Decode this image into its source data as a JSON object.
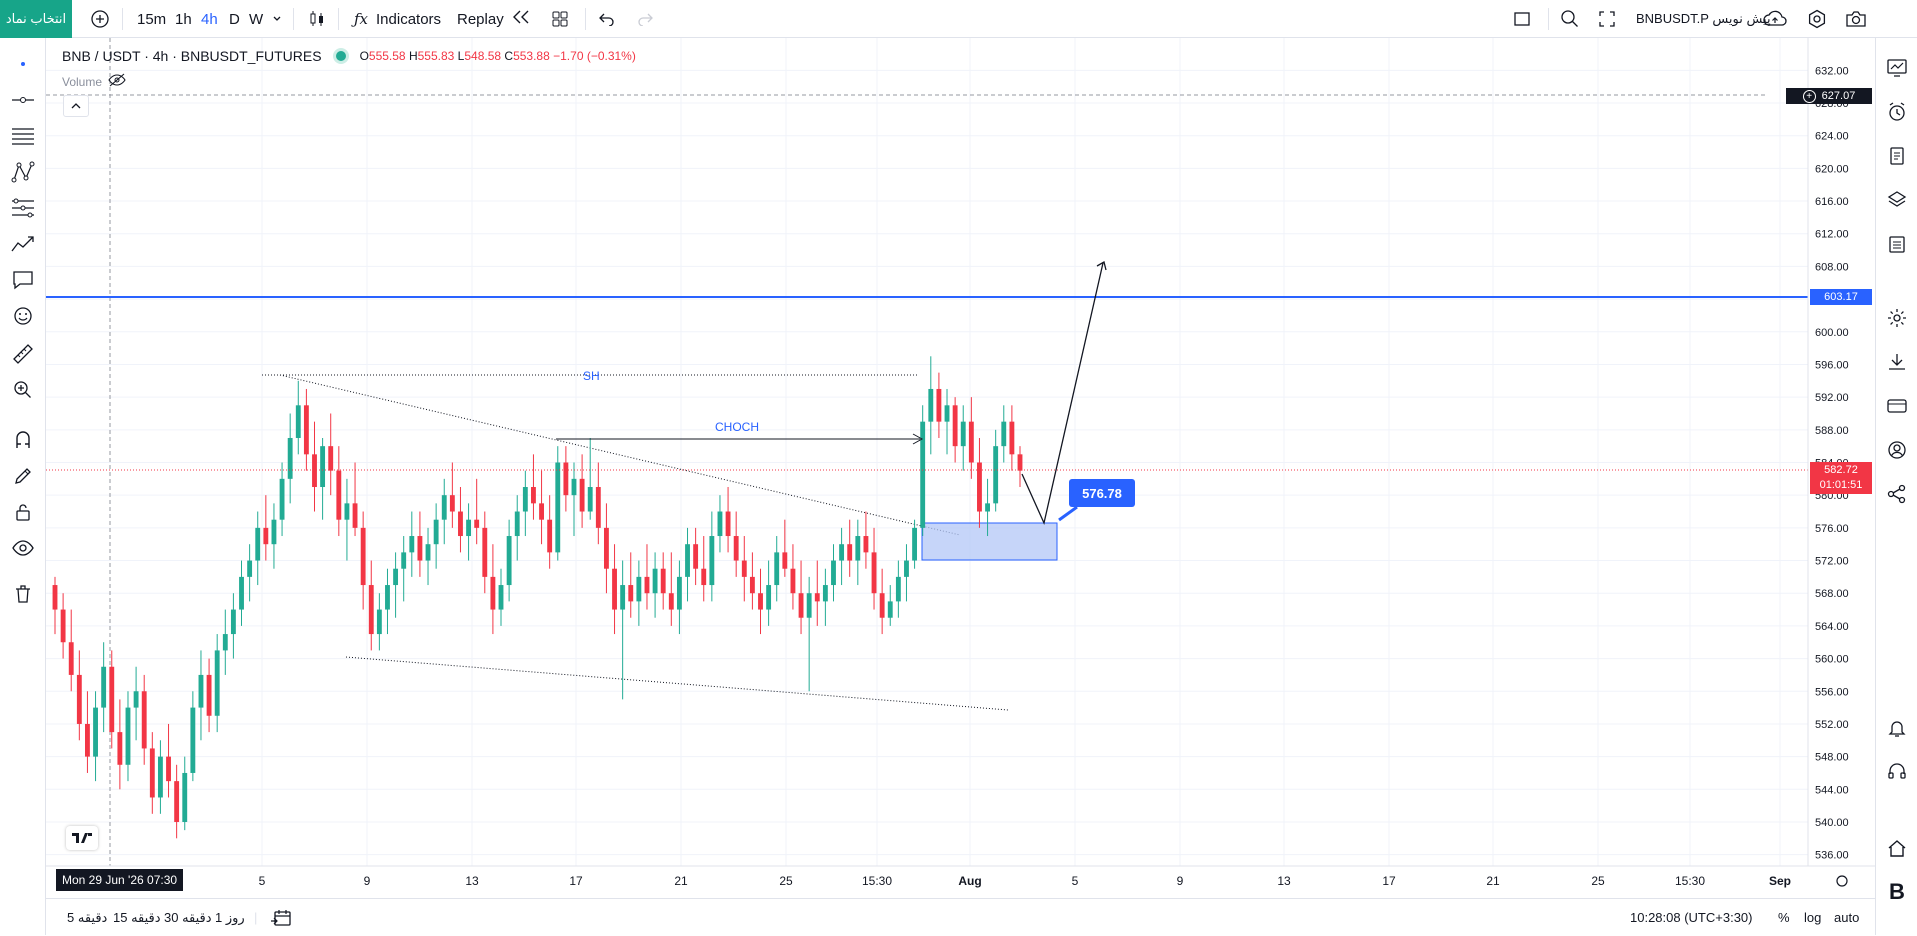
{
  "topbar": {
    "symbol_button": "انتخاب نماد",
    "intervals": [
      "15m",
      "1h",
      "4h",
      "D",
      "W"
    ],
    "active_interval": "4h",
    "indicators_label": "Indicators",
    "replay_label": "Replay",
    "ticker_label": "BNBUSDT.P پیش نویس"
  },
  "legend": {
    "title": "BNB / USDT · 4h · BNBUSDT_FUTURES",
    "open_label": "O",
    "open": "555.58",
    "high_label": "H",
    "high": "555.83",
    "low_label": "L",
    "low": "548.58",
    "close_label": "C",
    "close": "553.88",
    "change": "−1.70 (−0.31%)",
    "volume_label": "Volume"
  },
  "price_scale": {
    "ticks": [
      "632.00",
      "628.00",
      "624.00",
      "620.00",
      "616.00",
      "612.00",
      "608.00",
      "604.00",
      "600.00",
      "596.00",
      "592.00",
      "588.00",
      "584.00",
      "580.00",
      "576.00",
      "572.00",
      "568.00",
      "564.00",
      "560.00",
      "556.00",
      "552.00",
      "548.00",
      "544.00",
      "540.00",
      "536.00"
    ],
    "crosshair_price": "627.07",
    "line_price": "603.17",
    "last_price": "582.72",
    "countdown": "01:01:51"
  },
  "time_scale": {
    "labels": [
      "5",
      "9",
      "13",
      "17",
      "21",
      "25",
      "15:30",
      "Aug",
      "5",
      "9",
      "13",
      "17",
      "21",
      "25",
      "15:30",
      "Sep"
    ],
    "crosshair_date": "Mon 29 Jun '26   07:30"
  },
  "annotations": {
    "sh_label": "SH",
    "choch_label": "CHOCH",
    "target_price": "576.78"
  },
  "bottombar": {
    "ranges": [
      "5 دقیقه",
      "15 دقیقه",
      "30 دقیقه",
      "1 روز"
    ],
    "clock": "10:28:08 (UTC+3:30)",
    "percent": "%",
    "log": "log",
    "auto": "auto"
  },
  "colors": {
    "up": "#22ab94",
    "down": "#f23645",
    "accent": "#2962ff",
    "zone_fill": "#b3c7f7"
  },
  "chart_data": {
    "type": "candlestick",
    "y_range": [
      534,
      634
    ],
    "horizontal_line": 603.17,
    "crosshair_level": 627.07,
    "last_price": 582.72,
    "demand_zone": [
      572,
      577.1
    ],
    "ohlc": [
      [
        569,
        570,
        563,
        566
      ],
      [
        566,
        568,
        560,
        562
      ],
      [
        562,
        566,
        556,
        558
      ],
      [
        558,
        561,
        550,
        552
      ],
      [
        552,
        556,
        546,
        548
      ],
      [
        548,
        556,
        545,
        554
      ],
      [
        554,
        562,
        551,
        559
      ],
      [
        559,
        561,
        549,
        551
      ],
      [
        551,
        555,
        544,
        547
      ],
      [
        547,
        556,
        545,
        554
      ],
      [
        554,
        559,
        550,
        556
      ],
      [
        556,
        558,
        547,
        549
      ],
      [
        549,
        551,
        541,
        543
      ],
      [
        543,
        550,
        541,
        548
      ],
      [
        548,
        552,
        543,
        545
      ],
      [
        545,
        547,
        538,
        540
      ],
      [
        540,
        548,
        539,
        546
      ],
      [
        546,
        556,
        545,
        554
      ],
      [
        554,
        561,
        550,
        558
      ],
      [
        558,
        560,
        551,
        553
      ],
      [
        553,
        563,
        551,
        561
      ],
      [
        561,
        566,
        558,
        563
      ],
      [
        563,
        568,
        560,
        566
      ],
      [
        566,
        572,
        564,
        570
      ],
      [
        570,
        574,
        567,
        572
      ],
      [
        572,
        578,
        569,
        576
      ],
      [
        576,
        580,
        572,
        574
      ],
      [
        574,
        579,
        571,
        577
      ],
      [
        577,
        584,
        575,
        582
      ],
      [
        582,
        590,
        579,
        587
      ],
      [
        587,
        594,
        585,
        591
      ],
      [
        591,
        593,
        583,
        585
      ],
      [
        585,
        589,
        578,
        581
      ],
      [
        581,
        587,
        577,
        586
      ],
      [
        586,
        590,
        580,
        583
      ],
      [
        583,
        586,
        575,
        577
      ],
      [
        577,
        582,
        572,
        579
      ],
      [
        579,
        584,
        575,
        576
      ],
      [
        576,
        578,
        566,
        569
      ],
      [
        569,
        572,
        561,
        563
      ],
      [
        563,
        568,
        561,
        566
      ],
      [
        566,
        571,
        563,
        569
      ],
      [
        569,
        573,
        565,
        571
      ],
      [
        571,
        575,
        567,
        573
      ],
      [
        573,
        578,
        570,
        575
      ],
      [
        575,
        578,
        570,
        572
      ],
      [
        572,
        576,
        569,
        574
      ],
      [
        574,
        579,
        571,
        577
      ],
      [
        577,
        582,
        574,
        580
      ],
      [
        580,
        584,
        576,
        578
      ],
      [
        578,
        581,
        573,
        575
      ],
      [
        575,
        579,
        572,
        577
      ],
      [
        577,
        582,
        574,
        576
      ],
      [
        576,
        578,
        568,
        570
      ],
      [
        570,
        574,
        563,
        566
      ],
      [
        566,
        571,
        564,
        569
      ],
      [
        569,
        577,
        567,
        575
      ],
      [
        575,
        580,
        572,
        578
      ],
      [
        578,
        583,
        575,
        581
      ],
      [
        581,
        585,
        577,
        579
      ],
      [
        579,
        583,
        574,
        577
      ],
      [
        577,
        580,
        571,
        573
      ],
      [
        573,
        586,
        572,
        584
      ],
      [
        584,
        586,
        578,
        580
      ],
      [
        580,
        584,
        575,
        582
      ],
      [
        582,
        585,
        576,
        578
      ],
      [
        578,
        587,
        577,
        581
      ],
      [
        581,
        584,
        574,
        576
      ],
      [
        576,
        579,
        568,
        571
      ],
      [
        571,
        574,
        563,
        566
      ],
      [
        566,
        572,
        555,
        569
      ],
      [
        569,
        573,
        565,
        567
      ],
      [
        567,
        572,
        564,
        570
      ],
      [
        570,
        574,
        566,
        568
      ],
      [
        568,
        573,
        565,
        571
      ],
      [
        571,
        573,
        566,
        568
      ],
      [
        568,
        573,
        564,
        566
      ],
      [
        566,
        572,
        563,
        570
      ],
      [
        570,
        576,
        567,
        574
      ],
      [
        574,
        576,
        569,
        571
      ],
      [
        571,
        575,
        567,
        569
      ],
      [
        569,
        578,
        567,
        575
      ],
      [
        575,
        580,
        573,
        578
      ],
      [
        578,
        581,
        573,
        575
      ],
      [
        575,
        578,
        570,
        572
      ],
      [
        572,
        575,
        567,
        570
      ],
      [
        570,
        573,
        566,
        568
      ],
      [
        568,
        571,
        563,
        566
      ],
      [
        566,
        572,
        564,
        569
      ],
      [
        569,
        575,
        567,
        573
      ],
      [
        573,
        577,
        570,
        571
      ],
      [
        571,
        574,
        566,
        568
      ],
      [
        568,
        572,
        563,
        565
      ],
      [
        565,
        570,
        556,
        568
      ],
      [
        568,
        572,
        564,
        567
      ],
      [
        567,
        571,
        564,
        569
      ],
      [
        569,
        574,
        567,
        572
      ],
      [
        572,
        576,
        569,
        574
      ],
      [
        574,
        577,
        570,
        572
      ],
      [
        572,
        577,
        569,
        575
      ],
      [
        575,
        578,
        571,
        573
      ],
      [
        573,
        576,
        566,
        568
      ],
      [
        568,
        571,
        563,
        565
      ],
      [
        565,
        569,
        564,
        567
      ],
      [
        567,
        572,
        565,
        570
      ],
      [
        570,
        574,
        567,
        572
      ],
      [
        572,
        577,
        571,
        576
      ],
      [
        576,
        591,
        575,
        589
      ],
      [
        589,
        597,
        585,
        593
      ],
      [
        593,
        595,
        587,
        589
      ],
      [
        589,
        593,
        585,
        591
      ],
      [
        591,
        592,
        584,
        586
      ],
      [
        586,
        591,
        583,
        589
      ],
      [
        589,
        592,
        582,
        584
      ],
      [
        584,
        587,
        576,
        578
      ],
      [
        578,
        582,
        575,
        579
      ],
      [
        579,
        588,
        578,
        586
      ],
      [
        586,
        591,
        584,
        589
      ],
      [
        589,
        591,
        583,
        585
      ],
      [
        585,
        586,
        581,
        583
      ]
    ]
  }
}
